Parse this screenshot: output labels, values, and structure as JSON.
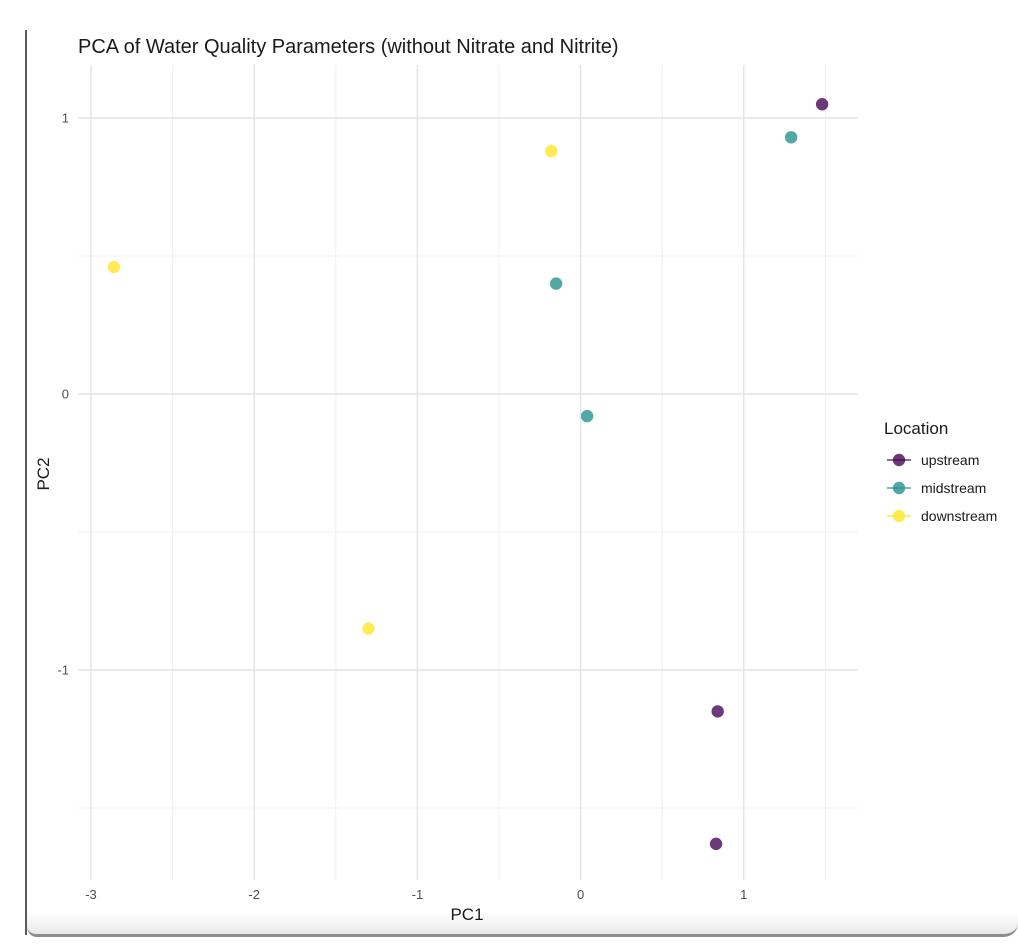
{
  "chart_data": {
    "type": "scatter",
    "title": "PCA of Water Quality Parameters (without Nitrate and Nitrite)",
    "xlabel": "PC1",
    "ylabel": "PC2",
    "xlim": [
      -3.08,
      1.72
    ],
    "ylim": [
      -1.8,
      1.2
    ],
    "x_ticks": [
      -3,
      -2,
      -1,
      0,
      1
    ],
    "y_ticks": [
      -1,
      0,
      1
    ],
    "x_tick_labels": [
      "-3",
      "-2",
      "-1",
      "0",
      "1"
    ],
    "y_tick_labels": [
      "-1",
      "0",
      "1"
    ],
    "grid": true,
    "legend_position": "right",
    "legend_title": "Location",
    "series": [
      {
        "name": "upstream",
        "color": "#440154",
        "points": [
          [
            1.48,
            1.05
          ],
          [
            0.84,
            -1.15
          ],
          [
            0.83,
            -1.63
          ]
        ]
      },
      {
        "name": "midstream",
        "color": "#21908C",
        "points": [
          [
            1.29,
            0.93
          ],
          [
            -0.15,
            0.4
          ],
          [
            0.04,
            -0.08
          ]
        ]
      },
      {
        "name": "downstream",
        "color": "#FDE725",
        "points": [
          [
            -2.86,
            0.46
          ],
          [
            -0.18,
            0.88
          ],
          [
            -1.3,
            -0.85
          ]
        ]
      }
    ]
  }
}
